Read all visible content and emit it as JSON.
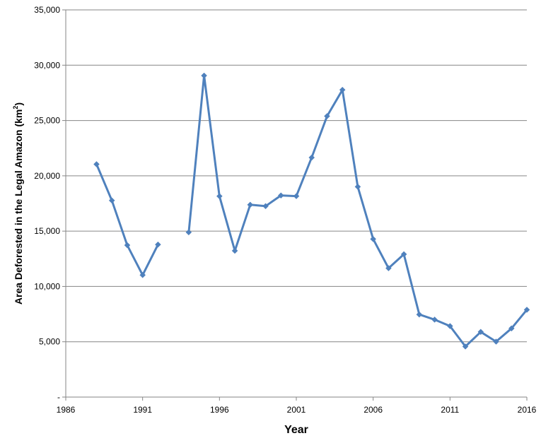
{
  "chart_data": {
    "type": "line",
    "xlabel": "Year",
    "ylabel": "Area Deforested in the Legal Amazon (km",
    "ylabel_sup": "2",
    "ylabel_suffix": ")",
    "xlim": [
      1986,
      2016
    ],
    "ylim": [
      0,
      35000
    ],
    "x_ticks": [
      1986,
      1991,
      1996,
      2001,
      2006,
      2011,
      2016
    ],
    "y_ticks": [
      0,
      5000,
      10000,
      15000,
      20000,
      25000,
      30000,
      35000
    ],
    "y_tick_labels": [
      "-",
      "5,000",
      "10,000",
      "15,000",
      "20,000",
      "25,000",
      "30,000",
      "35,000"
    ],
    "grid": "horizontal",
    "color": "#4F81BD",
    "series": [
      {
        "x": [
          1988,
          1989,
          1990,
          1991,
          1992,
          1993,
          1994,
          1995,
          1996,
          1997,
          1998,
          1999,
          2000,
          2001,
          2002,
          2003,
          2004,
          2005,
          2006,
          2007,
          2008,
          2009,
          2010,
          2011,
          2012,
          2013,
          2014,
          2015,
          2016
        ],
        "values": [
          21050,
          17770,
          13730,
          11030,
          13786,
          null,
          14896,
          29059,
          18161,
          13227,
          17383,
          17259,
          18226,
          18165,
          21651,
          25396,
          27772,
          19014,
          14286,
          11651,
          12911,
          7464,
          7000,
          6418,
          4571,
          5891,
          5012,
          6207,
          7893
        ]
      }
    ]
  }
}
